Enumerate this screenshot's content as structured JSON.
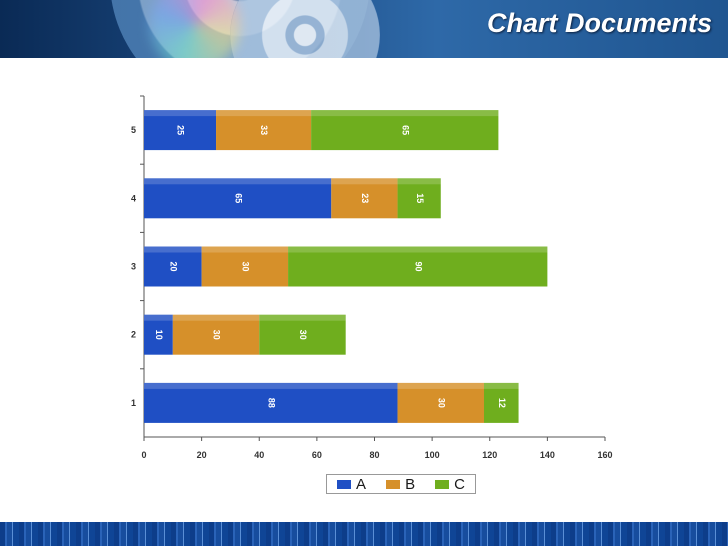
{
  "slide": {
    "title": "Chart Documents"
  },
  "chart_data": {
    "type": "bar",
    "orientation": "horizontal",
    "stacked": true,
    "categories": [
      "1",
      "2",
      "3",
      "4",
      "5"
    ],
    "series": [
      {
        "name": "A",
        "values": [
          88,
          10,
          20,
          65,
          25
        ],
        "color": "#1f4fc4"
      },
      {
        "name": "B",
        "values": [
          30,
          30,
          30,
          23,
          33
        ],
        "color": "#d6902a"
      },
      {
        "name": "C",
        "values": [
          12,
          30,
          90,
          15,
          65
        ],
        "color": "#6fae1e"
      }
    ],
    "xlim": [
      0,
      160
    ],
    "xticks": [
      0,
      20,
      40,
      60,
      80,
      100,
      120,
      140,
      160
    ],
    "data_labels": true,
    "grid": false,
    "legend_position": "bottom"
  }
}
